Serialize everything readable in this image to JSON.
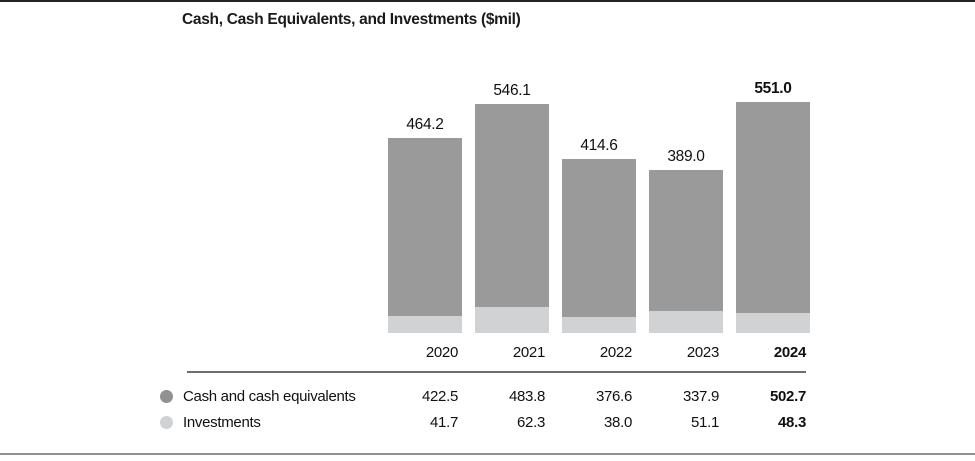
{
  "title": "Cash, Cash Equivalents, and Investments ($mil)",
  "colors": {
    "cash_series": "#9a9a9a",
    "investments_series": "#d1d2d3",
    "legend_bullet_cash": "#8f9193",
    "legend_bullet_investments": "#cfd1d2",
    "table_rule": "#6d6e70",
    "top_border": "#222222",
    "bottom_border": "#8f9092"
  },
  "chart_data": {
    "type": "bar",
    "stacked": true,
    "title": "Cash, Cash Equivalents, and Investments ($mil)",
    "categories": [
      "2020",
      "2021",
      "2022",
      "2023",
      "2024"
    ],
    "series": [
      {
        "name": "Cash and cash equivalents",
        "color": "#9a9a9a",
        "values": [
          422.5,
          483.8,
          376.6,
          337.9,
          502.7
        ]
      },
      {
        "name": "Investments",
        "color": "#d1d2d3",
        "values": [
          41.7,
          62.3,
          38.0,
          51.1,
          48.3
        ]
      }
    ],
    "totals": [
      464.2,
      546.1,
      414.6,
      389.0,
      551.0
    ],
    "xlabel": "",
    "ylabel": "",
    "ylim": [
      0,
      560
    ],
    "grid": false,
    "axes_visible": false,
    "value_labels": "totals-above-bars-one-decimal",
    "highlight_last_column": true,
    "legend_position": "table-below-chart"
  },
  "table": {
    "columns": [
      "2020",
      "2021",
      "2022",
      "2023",
      "2024"
    ],
    "rows": [
      {
        "label": "Cash and cash equivalents",
        "bullet_color": "#8f9193",
        "values": [
          "422.5",
          "483.8",
          "376.6",
          "337.9",
          "502.7"
        ]
      },
      {
        "label": "Investments",
        "bullet_color": "#cfd1d2",
        "values": [
          "41.7",
          "62.3",
          "38.0",
          "51.1",
          "48.3"
        ]
      }
    ]
  }
}
